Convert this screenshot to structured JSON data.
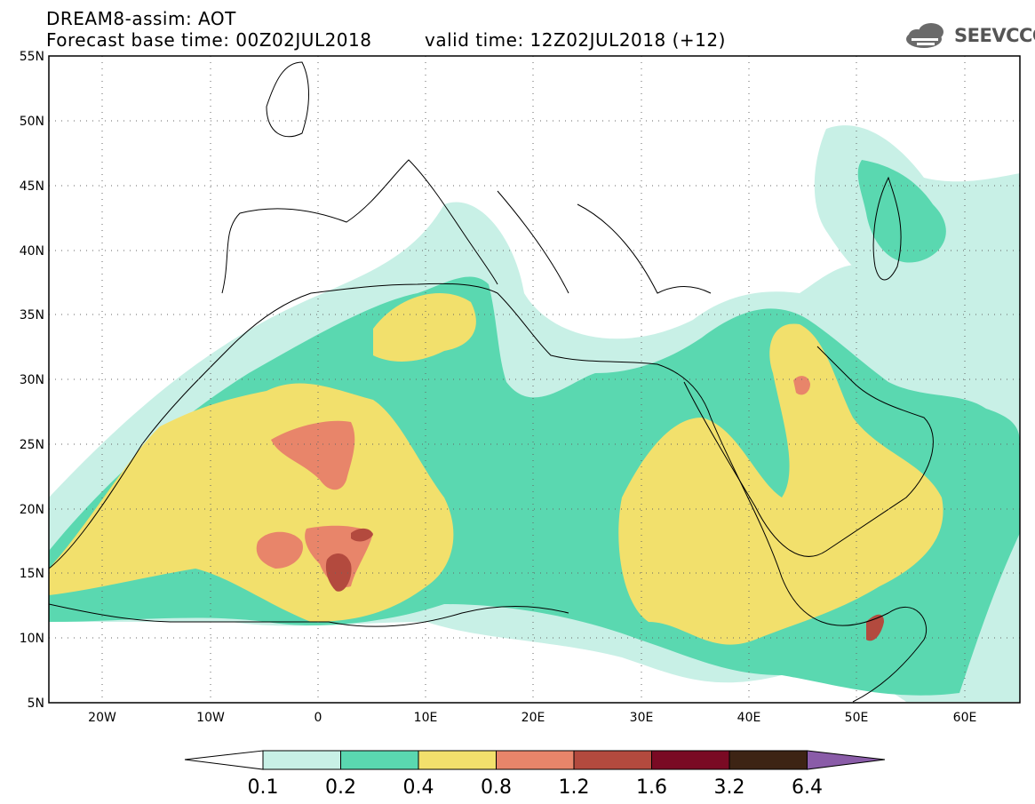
{
  "header": {
    "title": "DREAM8-assim: AOT",
    "base_time": "Forecast base time: 00Z02JUL2018",
    "valid_time": "valid time: 12Z02JUL2018 (+12)"
  },
  "logo": {
    "text": "SEEVCCC",
    "icon": "cloud-icon"
  },
  "map": {
    "lat_labels": [
      "55N",
      "50N",
      "45N",
      "40N",
      "35N",
      "30N",
      "25N",
      "20N",
      "15N",
      "10N",
      "5N"
    ],
    "lon_labels": [
      "20W",
      "10W",
      "0",
      "10E",
      "20E",
      "30E",
      "40E",
      "50E",
      "60E"
    ],
    "lon_range": [
      -25,
      65
    ],
    "lat_range": [
      5,
      55
    ]
  },
  "colorbar": {
    "ticks": [
      "0.1",
      "0.2",
      "0.4",
      "0.8",
      "1.2",
      "1.6",
      "3.2",
      "6.4"
    ],
    "colors": [
      "#ffffff",
      "#c8f0e6",
      "#5ad8b0",
      "#f2e06c",
      "#e8856a",
      "#b34a3e",
      "#7a0a24",
      "#3d2414",
      "#8a5ca8"
    ]
  }
}
